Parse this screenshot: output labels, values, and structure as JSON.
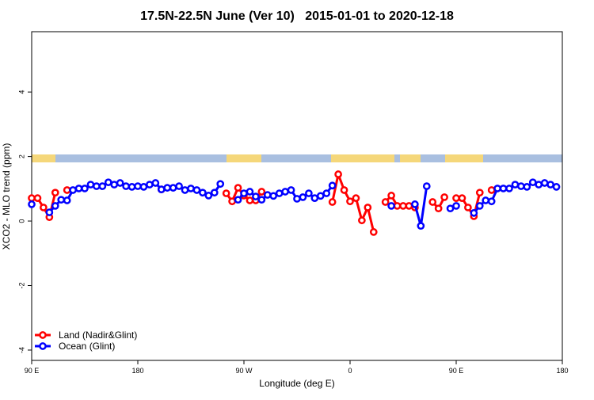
{
  "chart_data": {
    "type": "line",
    "title": "17.5N-22.5N June (Ver 10)   2015-01-01 to 2020-12-18",
    "x_label": "Longitude (deg E)",
    "y_label": "XCO2 - MLO trend (ppm)",
    "x": [
      90,
      95,
      100,
      105,
      110,
      115,
      120,
      125,
      130,
      135,
      140,
      145,
      150,
      155,
      160,
      165,
      170,
      175,
      180,
      185,
      190,
      195,
      200,
      205,
      210,
      215,
      220,
      225,
      230,
      235,
      240,
      245,
      250,
      255,
      260,
      265,
      270,
      275,
      280,
      285,
      290,
      295,
      300,
      305,
      310,
      315,
      320,
      325,
      330,
      335,
      340,
      345,
      350,
      355,
      360,
      365,
      370,
      375,
      380,
      385,
      390,
      395,
      400,
      405,
      410,
      415,
      420,
      425,
      430,
      435,
      440,
      445,
      450,
      455,
      460,
      465,
      470,
      475,
      480,
      485,
      490,
      495,
      500,
      505,
      510,
      515,
      520,
      525,
      530,
      535,
      540
    ],
    "xlim": [
      90,
      540
    ],
    "xticks": [
      {
        "value": 90,
        "label": "90 E"
      },
      180,
      {
        "value": 270,
        "label": "90 W"
      },
      {
        "value": 360,
        "label": "0"
      },
      {
        "value": 450,
        "label": "90 E"
      },
      {
        "value": 540,
        "label": "180"
      }
    ],
    "ylim": [
      -4.32,
      5.87
    ],
    "yticks": [
      -4,
      -2,
      0,
      2,
      4
    ],
    "legend": "bottom-left",
    "series": [
      {
        "name": "Land (Nadir&Glint)",
        "color": "#ff0000",
        "values": [
          0.71,
          0.71,
          0.42,
          0.12,
          0.88,
          null,
          0.96,
          null,
          null,
          null,
          null,
          null,
          null,
          null,
          null,
          null,
          null,
          null,
          null,
          null,
          null,
          null,
          0.98,
          null,
          null,
          null,
          null,
          null,
          null,
          null,
          null,
          null,
          null,
          0.86,
          0.61,
          1.03,
          0.79,
          0.64,
          0.64,
          0.91,
          null,
          null,
          null,
          null,
          null,
          null,
          null,
          null,
          null,
          null,
          null,
          0.59,
          1.45,
          0.96,
          0.61,
          0.71,
          0.02,
          0.42,
          -0.34,
          null,
          0.59,
          0.79,
          0.47,
          0.47,
          0.47,
          0.42,
          null,
          null,
          0.59,
          0.39,
          0.74,
          null,
          0.71,
          0.71,
          0.42,
          0.15,
          0.88,
          null,
          0.96,
          null,
          null,
          null,
          null,
          null,
          null,
          null,
          null,
          null,
          null,
          null,
          null
        ]
      },
      {
        "name": "Ocean (Glint)",
        "color": "#0000ff",
        "values": [
          0.52,
          null,
          null,
          0.27,
          0.47,
          0.66,
          0.64,
          0.96,
          1.01,
          1.01,
          1.13,
          1.08,
          1.08,
          1.2,
          1.13,
          1.18,
          1.08,
          1.06,
          1.08,
          1.06,
          1.13,
          1.18,
          0.98,
          1.03,
          1.03,
          1.08,
          0.96,
          1.01,
          0.96,
          0.88,
          0.79,
          0.88,
          1.15,
          null,
          null,
          0.66,
          0.86,
          0.91,
          0.76,
          0.66,
          0.81,
          0.78,
          0.86,
          0.91,
          0.96,
          0.69,
          0.74,
          0.86,
          0.71,
          0.78,
          0.86,
          1.1,
          null,
          null,
          null,
          null,
          null,
          null,
          null,
          null,
          null,
          0.47,
          null,
          null,
          null,
          0.52,
          -0.15,
          1.08,
          null,
          null,
          null,
          0.39,
          0.47,
          null,
          null,
          0.25,
          0.47,
          0.64,
          0.61,
          1.01,
          1.01,
          1.01,
          1.13,
          1.08,
          1.06,
          1.2,
          1.13,
          1.18,
          1.13,
          1.06,
          null
        ]
      }
    ]
  }
}
